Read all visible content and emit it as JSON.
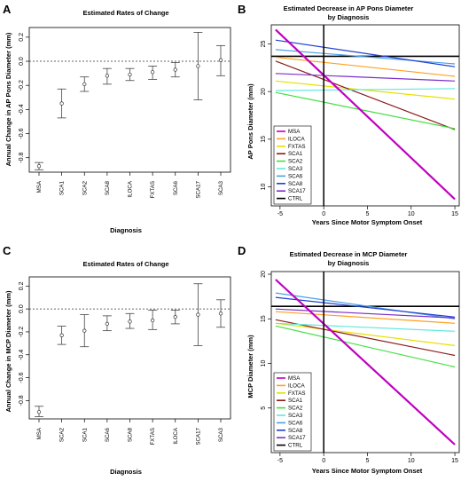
{
  "chart_data": [
    {
      "panel": "A",
      "type": "errorbar",
      "title": "Estimated Rates of Change",
      "xlabel": "Diagnosis",
      "ylabel": "Annual Change in AP Pons Diameter (mm)",
      "ylim": [
        -0.92,
        0.28
      ],
      "yticks": [
        "-0.8",
        "-0.6",
        "-0.4",
        "-0.2",
        "0.0",
        "0.2"
      ],
      "ytick_values": [
        -0.8,
        -0.6,
        -0.4,
        -0.2,
        0.0,
        0.2
      ],
      "reference_line": 0.0,
      "categories": [
        "MSA",
        "SCA1",
        "SCA2",
        "SCA8",
        "ILOCA",
        "FXTAS",
        "SCA6",
        "SCA17",
        "SCA3"
      ],
      "estimate": [
        -0.87,
        -0.35,
        -0.19,
        -0.12,
        -0.11,
        -0.09,
        -0.07,
        -0.04,
        0.01
      ],
      "lower": [
        -0.9,
        -0.47,
        -0.25,
        -0.19,
        -0.16,
        -0.15,
        -0.13,
        -0.32,
        -0.12
      ],
      "upper": [
        -0.84,
        -0.23,
        -0.13,
        -0.06,
        -0.06,
        -0.04,
        -0.01,
        0.24,
        0.13
      ]
    },
    {
      "panel": "B",
      "type": "line",
      "title": "Estimated Decrease in AP Pons Diameter by Diagnosis",
      "title_lines": [
        "Estimated Decrease in AP Pons Diameter",
        "by Diagnosis"
      ],
      "xlabel": "Years Since Motor Symptom Onset",
      "ylabel": "AP Pons Diameter (mm)",
      "xlim": [
        -6,
        15.5
      ],
      "ylim": [
        8,
        27
      ],
      "xticks": [
        -5,
        0,
        5,
        10,
        15
      ],
      "yticks": [
        10,
        15,
        20,
        25
      ],
      "legend_position": "bottom-left",
      "vline": 0,
      "hline": 23.7,
      "series": [
        {
          "name": "MSA",
          "color": "#c000c0",
          "x": [
            -5.5,
            15
          ],
          "y": [
            26.5,
            8.7
          ]
        },
        {
          "name": "ILOCA",
          "color": "#ffa020",
          "x": [
            -5.5,
            15
          ],
          "y": [
            23.6,
            21.6
          ]
        },
        {
          "name": "FXTAS",
          "color": "#e8e000",
          "x": [
            -5.5,
            15
          ],
          "y": [
            21.1,
            19.2
          ]
        },
        {
          "name": "SCA1",
          "color": "#8b1a1a",
          "x": [
            -5.5,
            15
          ],
          "y": [
            23.2,
            16.0
          ]
        },
        {
          "name": "SCA2",
          "color": "#40e040",
          "x": [
            -5.5,
            15
          ],
          "y": [
            19.9,
            16.1
          ]
        },
        {
          "name": "SCA3",
          "color": "#60e8e0",
          "x": [
            -5.5,
            15
          ],
          "y": [
            20.1,
            20.3
          ]
        },
        {
          "name": "SCA6",
          "color": "#4aa0e8",
          "x": [
            -5.5,
            15
          ],
          "y": [
            24.4,
            22.9
          ]
        },
        {
          "name": "SCA8",
          "color": "#2040d0",
          "x": [
            -5.5,
            15
          ],
          "y": [
            25.4,
            22.6
          ]
        },
        {
          "name": "SCA17",
          "color": "#7a30c8",
          "x": [
            -5.5,
            15
          ],
          "y": [
            21.9,
            21.1
          ]
        },
        {
          "name": "CTRL",
          "color": "#000000",
          "x": [
            -6,
            15.5
          ],
          "y": [
            23.7,
            23.7
          ]
        }
      ]
    },
    {
      "panel": "C",
      "type": "errorbar",
      "title": "Estimated Rates of Change",
      "xlabel": "Diagnosis",
      "ylabel": "Annual Change in MCP Diameter (mm)",
      "ylim": [
        -0.96,
        0.28
      ],
      "yticks": [
        "-0.8",
        "-0.6",
        "-0.4",
        "-0.2",
        "0.0",
        "0.2"
      ],
      "ytick_values": [
        -0.8,
        -0.6,
        -0.4,
        -0.2,
        0.0,
        0.2
      ],
      "reference_line": 0.0,
      "categories": [
        "MSA",
        "SCA2",
        "SCA1",
        "SCA6",
        "SCA8",
        "FXTAS",
        "ILOCA",
        "SCA17",
        "SCA3"
      ],
      "estimate": [
        -0.9,
        -0.23,
        -0.19,
        -0.13,
        -0.11,
        -0.1,
        -0.07,
        -0.05,
        -0.04
      ],
      "lower": [
        -0.94,
        -0.31,
        -0.33,
        -0.19,
        -0.17,
        -0.18,
        -0.13,
        -0.32,
        -0.16
      ],
      "upper": [
        -0.85,
        -0.15,
        -0.05,
        -0.06,
        -0.04,
        -0.01,
        -0.01,
        0.22,
        0.08
      ]
    },
    {
      "panel": "D",
      "type": "line",
      "title": "Estimated Decrease in MCP Diameter by Diagnosis",
      "title_lines": [
        "Estimated Decrease in MCP Diameter",
        "by Diagnosis"
      ],
      "xlabel": "Years Since Motor Symptom Onset",
      "ylabel": "MCP Diameter (mm)",
      "xlim": [
        -6,
        15.5
      ],
      "ylim": [
        0,
        20.3
      ],
      "xticks": [
        -5,
        0,
        5,
        10,
        15
      ],
      "yticks": [
        5,
        10,
        15,
        20
      ],
      "legend_position": "bottom-left",
      "vline": 0,
      "hline": 16.4,
      "series": [
        {
          "name": "MSA",
          "color": "#c000c0",
          "x": [
            -5.5,
            15
          ],
          "y": [
            19.4,
            0.9
          ]
        },
        {
          "name": "ILOCA",
          "color": "#ffa020",
          "x": [
            -5.5,
            15
          ],
          "y": [
            15.8,
            14.5
          ]
        },
        {
          "name": "FXTAS",
          "color": "#e8e000",
          "x": [
            -5.5,
            15
          ],
          "y": [
            14.5,
            12.0
          ]
        },
        {
          "name": "SCA1",
          "color": "#8b1a1a",
          "x": [
            -5.5,
            15
          ],
          "y": [
            14.9,
            10.9
          ]
        },
        {
          "name": "SCA2",
          "color": "#40e040",
          "x": [
            -5.5,
            15
          ],
          "y": [
            14.2,
            9.6
          ]
        },
        {
          "name": "SCA3",
          "color": "#60e8e0",
          "x": [
            -5.5,
            15
          ],
          "y": [
            14.5,
            13.6
          ]
        },
        {
          "name": "SCA6",
          "color": "#4aa0e8",
          "x": [
            -5.5,
            15
          ],
          "y": [
            17.9,
            15.0
          ]
        },
        {
          "name": "SCA8",
          "color": "#2040d0",
          "x": [
            -5.5,
            15
          ],
          "y": [
            17.4,
            15.2
          ]
        },
        {
          "name": "SCA17",
          "color": "#7a30c8",
          "x": [
            -5.5,
            15
          ],
          "y": [
            16.1,
            15.1
          ]
        },
        {
          "name": "CTRL",
          "color": "#000000",
          "x": [
            -6,
            15.5
          ],
          "y": [
            16.4,
            16.4
          ]
        }
      ]
    }
  ]
}
